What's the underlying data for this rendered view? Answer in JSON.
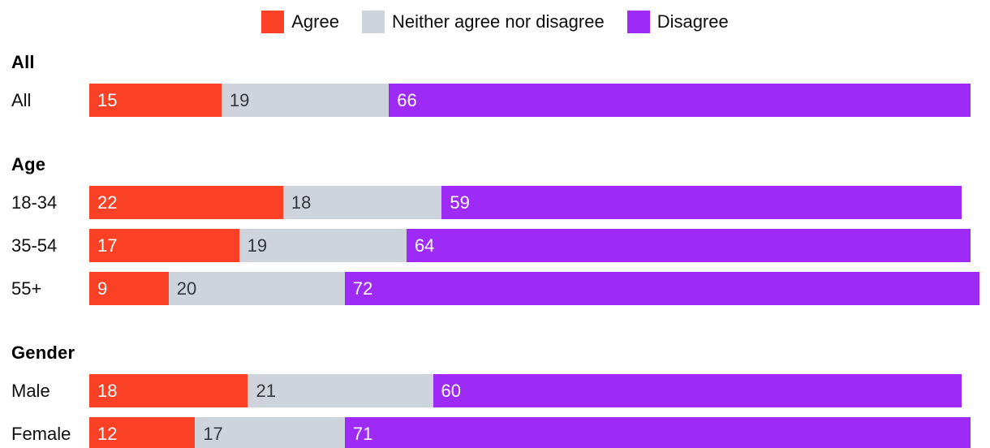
{
  "colors": {
    "agree": "#fb4125",
    "neither": "#cfd3db",
    "disagree": "#9d2bf5",
    "value_on_dark": "#ffffff",
    "value_on_light": "#33373d",
    "text": "#0e0e0e"
  },
  "series_keys": [
    "agree",
    "neither",
    "disagree"
  ],
  "legend": [
    {
      "key": "agree",
      "label": "Agree"
    },
    {
      "key": "neither",
      "label": "Neither agree nor disagree"
    },
    {
      "key": "disagree",
      "label": "Disagree"
    }
  ],
  "chart_data": {
    "type": "bar",
    "stacked": true,
    "orientation": "horizontal",
    "unit": "percent",
    "xlim": [
      0,
      100
    ],
    "grid": false,
    "legend_position": "top-center",
    "series_names": [
      "Agree",
      "Neither agree nor disagree",
      "Disagree"
    ],
    "groups": [
      {
        "header": "All",
        "rows": [
          {
            "label": "All",
            "values": [
              15,
              19,
              66
            ]
          }
        ]
      },
      {
        "header": "Age",
        "rows": [
          {
            "label": "18-34",
            "values": [
              22,
              18,
              59
            ]
          },
          {
            "label": "35-54",
            "values": [
              17,
              19,
              64
            ]
          },
          {
            "label": "55+",
            "values": [
              9,
              20,
              72
            ]
          }
        ]
      },
      {
        "header": "Gender",
        "rows": [
          {
            "label": "Male",
            "values": [
              18,
              21,
              60
            ]
          },
          {
            "label": "Female",
            "values": [
              12,
              17,
              71
            ]
          }
        ]
      }
    ]
  }
}
